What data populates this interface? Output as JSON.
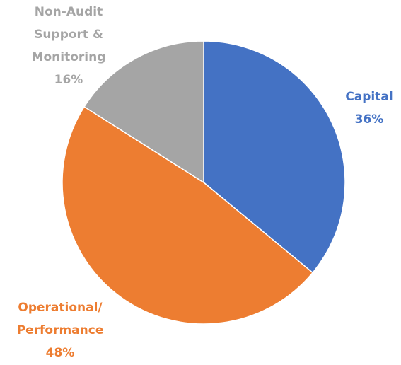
{
  "chart_data": {
    "type": "pie",
    "categories": [
      "Capital",
      "Operational/ Performance",
      "Non-Audit Support & Monitoring"
    ],
    "values": [
      36,
      48,
      16
    ],
    "value_labels": [
      "36%",
      "48%",
      "16%"
    ],
    "colors": [
      "#4472c4",
      "#ed7d31",
      "#a5a5a5"
    ]
  }
}
